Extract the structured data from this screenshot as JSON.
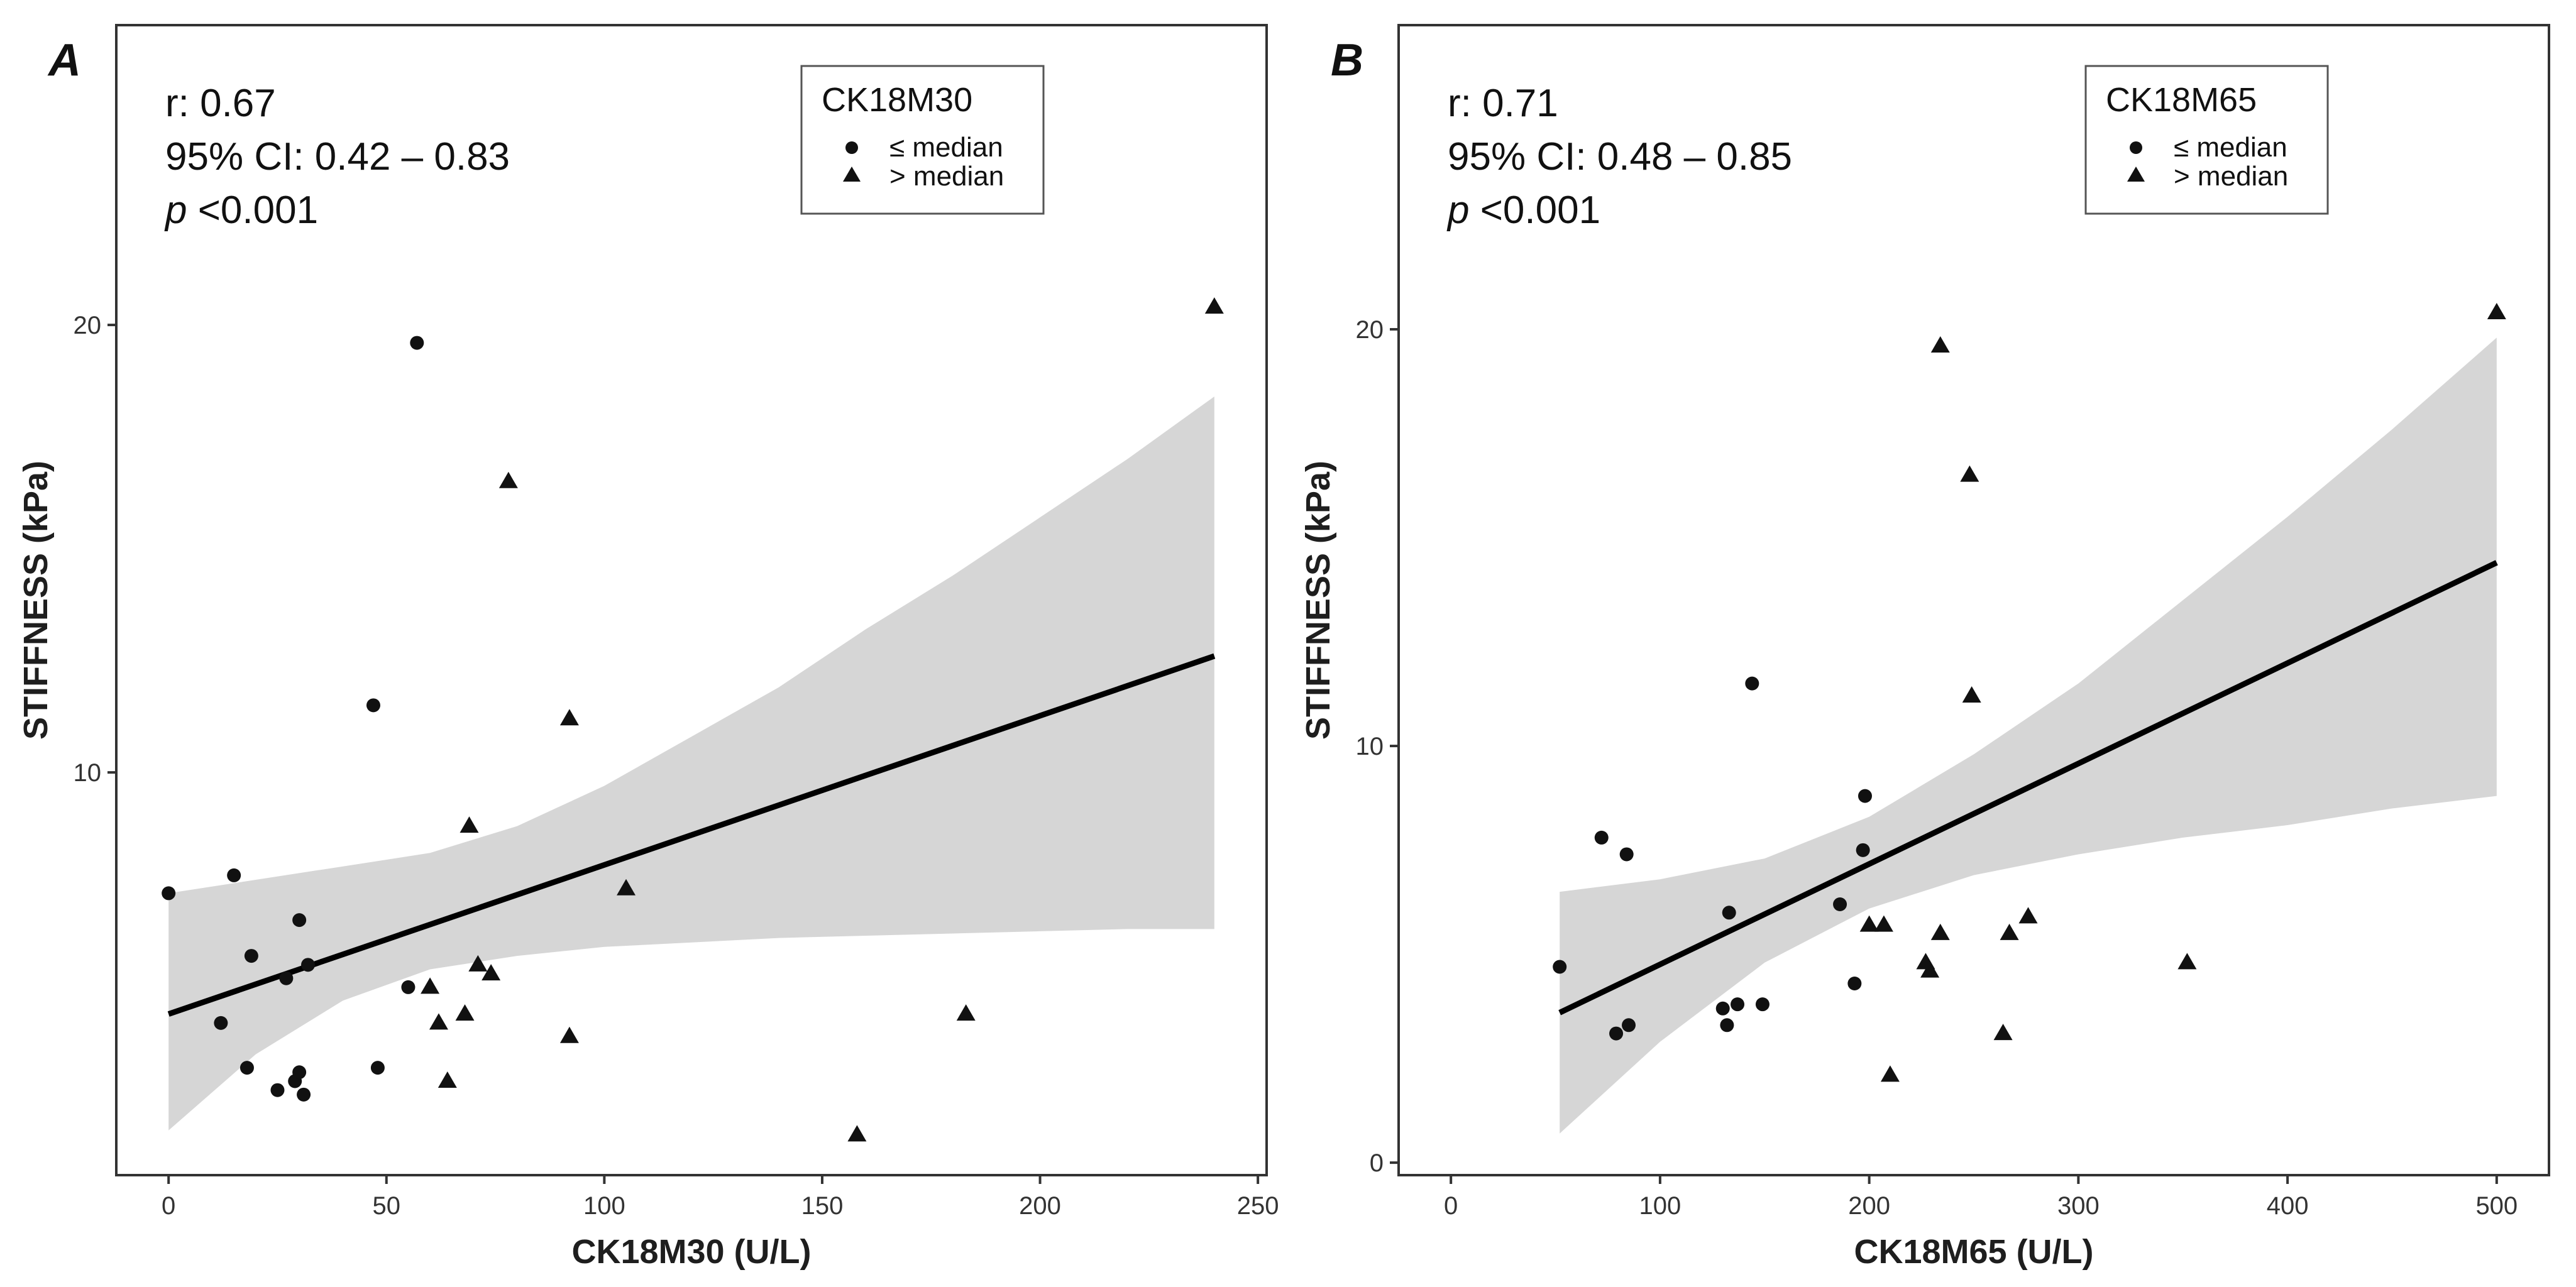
{
  "chart_data": [
    {
      "type": "scatter",
      "panel_label": "A",
      "xlabel": "CK18M30 (U/L)",
      "ylabel": "STIFFNESS (kPa)",
      "xlim": [
        -12,
        252
      ],
      "ylim": [
        1.0,
        26.7
      ],
      "xticks": [
        0,
        50,
        100,
        150,
        200,
        250
      ],
      "yticks": [
        10,
        20
      ],
      "stats": {
        "r": "r: 0.67",
        "ci": "95% CI: 0.42 – 0.83",
        "p_symbol": "p",
        "p_value": " <0.001"
      },
      "legend": {
        "title": "CK18M30",
        "items": [
          {
            "shape": "circle",
            "label": "≤ median"
          },
          {
            "shape": "triangle",
            "label": "> median"
          }
        ]
      },
      "regression": {
        "x": [
          0,
          240
        ],
        "y": [
          4.6,
          12.6
        ]
      },
      "confidence_band": {
        "x": [
          0,
          20,
          40,
          60,
          80,
          100,
          120,
          140,
          160,
          180,
          200,
          220,
          240
        ],
        "lower": [
          2.0,
          3.7,
          4.9,
          5.6,
          5.9,
          6.1,
          6.2,
          6.3,
          6.35,
          6.4,
          6.45,
          6.5,
          6.5
        ],
        "upper": [
          7.3,
          7.6,
          7.9,
          8.2,
          8.8,
          9.7,
          10.8,
          11.9,
          13.2,
          14.4,
          15.7,
          17.0,
          18.4
        ]
      },
      "series": [
        {
          "name": "≤ median",
          "marker": "circle",
          "color": "#111111",
          "x": [
            0,
            15,
            12,
            19,
            18,
            25,
            29,
            30,
            31,
            27,
            30,
            32,
            47,
            48,
            55,
            57
          ],
          "y": [
            7.3,
            7.7,
            4.4,
            5.9,
            3.4,
            2.9,
            3.1,
            3.3,
            2.8,
            5.4,
            6.7,
            5.7,
            11.5,
            3.4,
            5.2,
            19.6
          ]
        },
        {
          "name": "> median",
          "marker": "triangle",
          "color": "#111111",
          "x": [
            240,
            78,
            92,
            69,
            105,
            71,
            74,
            60,
            62,
            68,
            64,
            92,
            158,
            183
          ],
          "y": [
            20.4,
            16.5,
            11.2,
            8.8,
            7.4,
            5.7,
            5.5,
            5.2,
            4.4,
            4.6,
            3.1,
            4.1,
            1.9,
            4.6
          ]
        }
      ]
    },
    {
      "type": "scatter",
      "panel_label": "B",
      "xlabel": "CK18M65 (U/L)",
      "ylabel": "STIFFNESS (kPa)",
      "xlim": [
        -25,
        525
      ],
      "ylim": [
        -0.3,
        27.3
      ],
      "xticks": [
        0,
        100,
        200,
        300,
        400,
        500
      ],
      "yticks": [
        0,
        10,
        20
      ],
      "stats": {
        "r": "r: 0.71",
        "ci": "95% CI: 0.48 – 0.85",
        "p_symbol": "p",
        "p_value": " <0.001"
      },
      "legend": {
        "title": "CK18M65",
        "items": [
          {
            "shape": "circle",
            "label": "≤ median"
          },
          {
            "shape": "triangle",
            "label": "> median"
          }
        ]
      },
      "regression": {
        "x": [
          52,
          500
        ],
        "y": [
          3.6,
          14.4
        ]
      },
      "confidence_band": {
        "x": [
          52,
          100,
          150,
          200,
          250,
          300,
          350,
          400,
          450,
          500
        ],
        "lower": [
          0.7,
          2.9,
          4.8,
          6.1,
          6.9,
          7.4,
          7.8,
          8.1,
          8.5,
          8.8
        ],
        "upper": [
          6.5,
          6.8,
          7.3,
          8.3,
          9.8,
          11.5,
          13.5,
          15.5,
          17.6,
          19.8
        ]
      },
      "series": [
        {
          "name": "≤ median",
          "marker": "circle",
          "color": "#111111",
          "x": [
            52,
            72,
            84,
            79,
            85,
            130,
            132,
            133,
            137,
            149,
            144,
            186,
            193,
            197,
            198
          ],
          "y": [
            4.7,
            7.8,
            7.4,
            3.1,
            3.3,
            3.7,
            3.3,
            6.0,
            3.8,
            3.8,
            11.5,
            6.2,
            4.3,
            7.5,
            8.8
          ]
        },
        {
          "name": "> median",
          "marker": "triangle",
          "color": "#111111",
          "x": [
            500,
            234,
            248,
            249,
            200,
            207,
            234,
            227,
            229,
            267,
            276,
            264,
            352,
            210
          ],
          "y": [
            20.4,
            19.6,
            16.5,
            11.2,
            5.7,
            5.7,
            5.5,
            4.8,
            4.6,
            5.5,
            5.9,
            3.1,
            4.8,
            2.1
          ]
        }
      ]
    }
  ]
}
